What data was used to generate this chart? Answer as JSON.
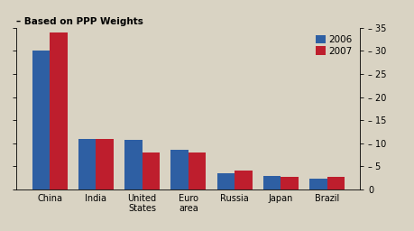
{
  "categories": [
    "China",
    "India",
    "United\nStates",
    "Euro\narea",
    "Russia",
    "Japan",
    "Brazil"
  ],
  "values_2006": [
    30.0,
    11.0,
    10.8,
    8.5,
    3.5,
    3.0,
    2.3
  ],
  "values_2007": [
    34.0,
    11.0,
    8.0,
    8.0,
    4.0,
    2.8,
    2.8
  ],
  "color_2006": "#2e5fa3",
  "color_2007": "#be1e2d",
  "title": "– Based on PPP Weights",
  "ylim": [
    0,
    35
  ],
  "yticks": [
    0,
    5,
    10,
    15,
    20,
    25,
    30,
    35
  ],
  "legend_labels": [
    "2006",
    "2007"
  ],
  "bar_width": 0.38,
  "background_color": "#d9d3c3"
}
